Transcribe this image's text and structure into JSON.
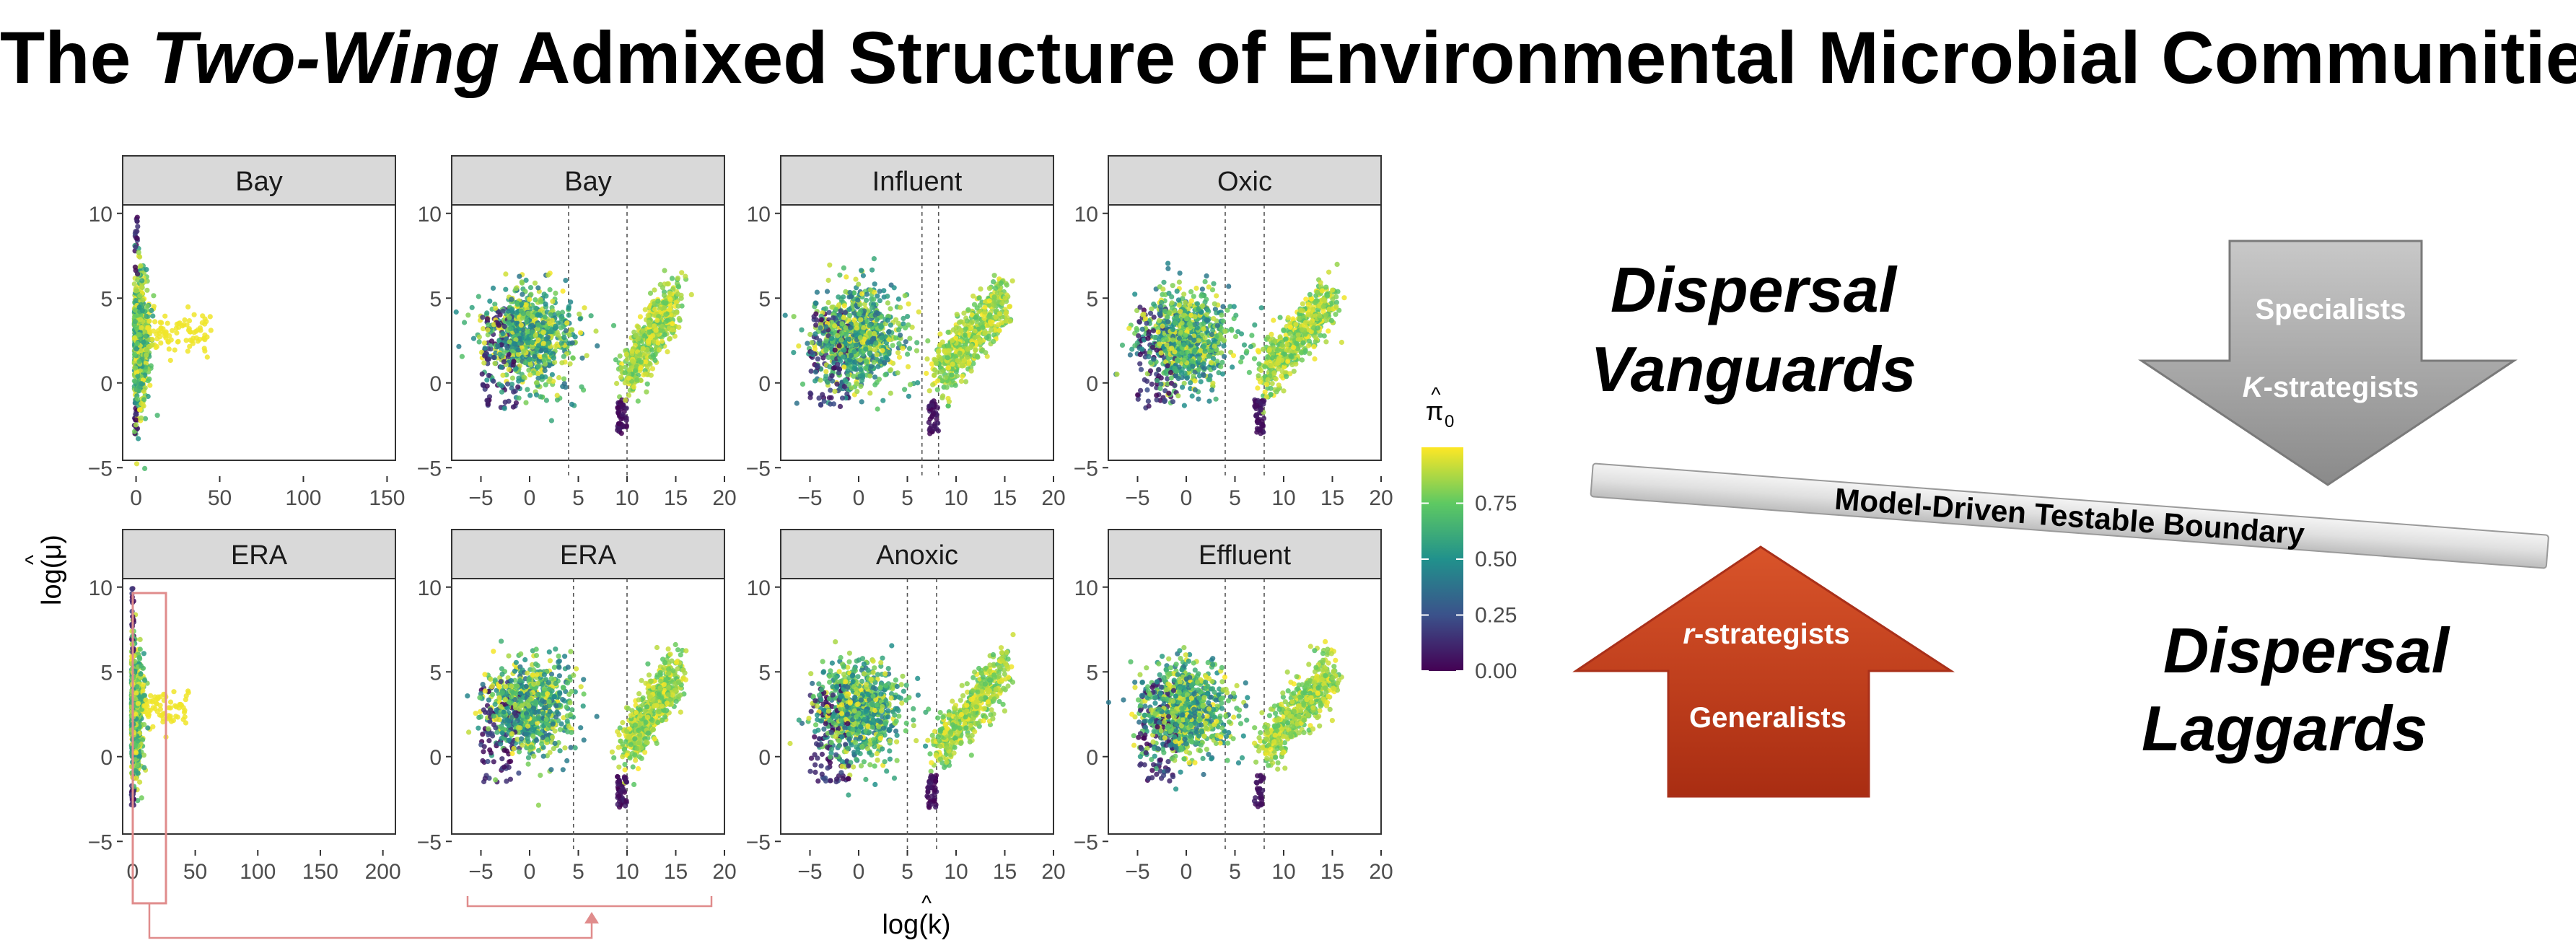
{
  "title": {
    "pre": "The ",
    "italic": "Two-Wing",
    "post": " Admixed Structure of Environmental Microbial Communities"
  },
  "axes": {
    "ylabel": "log(μ)",
    "xlabel": "log(k)",
    "ylabel_hat": "^",
    "xlabel_hat": "^"
  },
  "colorbar": {
    "title": "π",
    "title_sub": "0",
    "title_hat": "^",
    "ticks": [
      "0.75",
      "0.50",
      "0.25",
      "0.00"
    ],
    "colors": [
      "#440154",
      "#3b528b",
      "#21918c",
      "#5ec962",
      "#fde725"
    ]
  },
  "chart_data": [
    {
      "type": "scatter",
      "title": "Bay",
      "xticks": [
        "0",
        "50",
        "100",
        "150"
      ],
      "xlim": [
        -8,
        155
      ],
      "yticks": [
        "10",
        "5",
        "0",
        "-5"
      ],
      "ylim": [
        -5.5,
        10.5
      ],
      "vlines": []
    },
    {
      "type": "scatter",
      "title": "Bay",
      "xticks": [
        "-5",
        "0",
        "5",
        "10",
        "15",
        "20"
      ],
      "xlim": [
        -8,
        20
      ],
      "yticks": [
        "10",
        "5",
        "0",
        "-5"
      ],
      "ylim": [
        -5.5,
        10.5
      ],
      "vlines": [
        4,
        10
      ]
    },
    {
      "type": "scatter",
      "title": "Influent",
      "xticks": [
        "-5",
        "0",
        "5",
        "10",
        "15",
        "20"
      ],
      "xlim": [
        -8,
        20
      ],
      "yticks": [
        "10",
        "5",
        "0",
        "-5"
      ],
      "ylim": [
        -5.5,
        10.5
      ],
      "vlines": [
        6.5,
        8.2
      ]
    },
    {
      "type": "scatter",
      "title": "Oxic",
      "xticks": [
        "-5",
        "0",
        "5",
        "10",
        "15",
        "20"
      ],
      "xlim": [
        -8,
        20
      ],
      "yticks": [
        "10",
        "5",
        "0",
        "-5"
      ],
      "ylim": [
        -5.5,
        10.5
      ],
      "vlines": [
        4,
        8
      ]
    },
    {
      "type": "scatter",
      "title": "ERA",
      "xticks": [
        "0",
        "50",
        "100",
        "150",
        "200"
      ],
      "xlim": [
        -8,
        210
      ],
      "yticks": [
        "10",
        "5",
        "0",
        "-5"
      ],
      "ylim": [
        -5.5,
        10.5
      ],
      "vlines": []
    },
    {
      "type": "scatter",
      "title": "ERA",
      "xticks": [
        "-5",
        "0",
        "5",
        "10",
        "15",
        "20"
      ],
      "xlim": [
        -8,
        20
      ],
      "yticks": [
        "10",
        "5",
        "0",
        "-5"
      ],
      "ylim": [
        -5.5,
        10.5
      ],
      "vlines": [
        4.5,
        10
      ]
    },
    {
      "type": "scatter",
      "title": "Anoxic",
      "xticks": [
        "-5",
        "0",
        "5",
        "10",
        "15",
        "20"
      ],
      "xlim": [
        -8,
        20
      ],
      "yticks": [
        "10",
        "5",
        "0",
        "-5"
      ],
      "ylim": [
        -5.5,
        10.5
      ],
      "vlines": [
        5,
        8
      ]
    },
    {
      "type": "scatter",
      "title": "Effluent",
      "xticks": [
        "-5",
        "0",
        "5",
        "10",
        "15",
        "20"
      ],
      "xlim": [
        -8,
        20
      ],
      "yticks": [
        "10",
        "5",
        "0",
        "-5"
      ],
      "ylim": [
        -5.5,
        10.5
      ],
      "vlines": [
        4,
        8
      ]
    }
  ],
  "diagram": {
    "vanguards": [
      "Dispersal",
      "Vanguards"
    ],
    "laggards": [
      "Dispersal",
      "Laggards"
    ],
    "boundary": "Model-Driven Testable Boundary",
    "down_arrow": {
      "line1": "Specialists",
      "line2_italic": "K",
      "line2_rest": "-strategists",
      "color": "#9a9a9a"
    },
    "up_arrow": {
      "line1_italic": "r",
      "line1_rest": "-strategists",
      "line2": "Generalists",
      "color": "#c0391b"
    }
  }
}
